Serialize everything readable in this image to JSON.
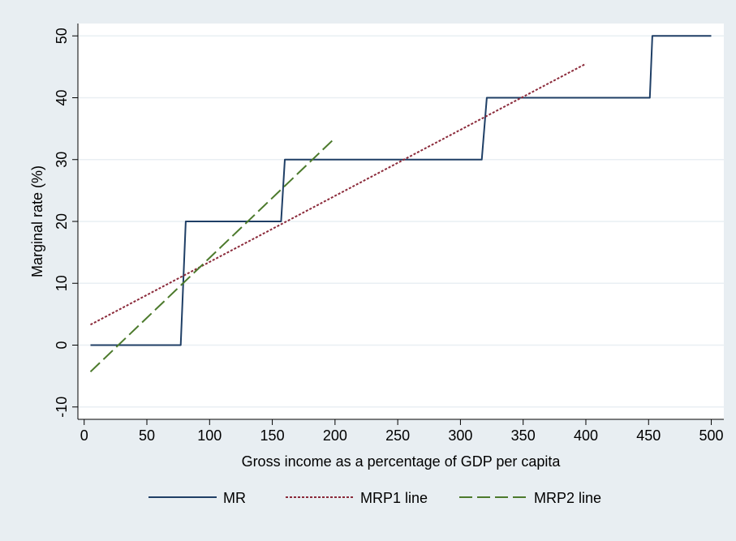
{
  "chart_data": {
    "type": "line",
    "title": "",
    "xlabel": "Gross income as a percentage of GDP per capita",
    "ylabel": "Marginal rate (%)",
    "xlim": [
      -5,
      510
    ],
    "ylim": [
      -12,
      52
    ],
    "xticks": [
      0,
      50,
      100,
      150,
      200,
      250,
      300,
      350,
      400,
      450,
      500
    ],
    "yticks": [
      -10,
      0,
      10,
      20,
      30,
      40,
      50
    ],
    "grid": true,
    "legend_position": "bottom",
    "series": [
      {
        "name": "MR",
        "color": "#1f3f66",
        "style": "solid",
        "x": [
          5,
          77,
          81,
          157,
          160,
          317,
          321,
          451,
          453,
          500
        ],
        "y": [
          0,
          0,
          20,
          20,
          30,
          30,
          40,
          40,
          50,
          50
        ]
      },
      {
        "name": "MRP1 line",
        "color": "#8b2a3a",
        "style": "dotted",
        "x": [
          5,
          400
        ],
        "y": [
          3.3,
          45.5
        ]
      },
      {
        "name": "MRP2 line",
        "color": "#4c7a2c",
        "style": "dashed",
        "x": [
          5,
          200
        ],
        "y": [
          -4.3,
          33.5
        ]
      }
    ]
  }
}
